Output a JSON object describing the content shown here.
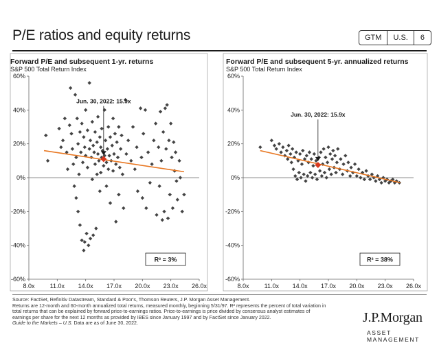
{
  "header": {
    "title": "P/E ratios and equity returns",
    "badges": [
      "GTM",
      "U.S.",
      "6"
    ]
  },
  "chart_data": [
    {
      "type": "scatter",
      "title": "Forward P/E and subsequent 1-yr. returns",
      "subtitle": "S&P 500 Total Return Index",
      "xlim": [
        8,
        26
      ],
      "ylim": [
        -60,
        60
      ],
      "x_ticks": [
        "8.0x",
        "11.0x",
        "14.0x",
        "17.0x",
        "20.0x",
        "23.0x",
        "26.0x"
      ],
      "y_ticks": [
        "-60%",
        "-40%",
        "-20%",
        "0%",
        "20%",
        "40%",
        "60%"
      ],
      "annotation": "Jun. 30, 2022: 15.9x",
      "r_squared": "R² = 3%",
      "trend_line": [
        [
          9.6,
          16.0
        ],
        [
          24.4,
          3.5
        ]
      ],
      "highlight_point": [
        15.9,
        11.0
      ],
      "marker_point": [
        15.9,
        14.5
      ],
      "colors": {
        "points": "#444444",
        "trend": "#e87722",
        "highlight": "#d9381e"
      },
      "points": [
        [
          9.8,
          25
        ],
        [
          10.0,
          10
        ],
        [
          11.2,
          29
        ],
        [
          11.4,
          18
        ],
        [
          11.6,
          22
        ],
        [
          11.8,
          35
        ],
        [
          12.0,
          15
        ],
        [
          12.1,
          5
        ],
        [
          12.3,
          31
        ],
        [
          12.4,
          53
        ],
        [
          12.5,
          26
        ],
        [
          12.6,
          17
        ],
        [
          12.7,
          8
        ],
        [
          12.8,
          -5
        ],
        [
          12.9,
          49
        ],
        [
          13.0,
          12
        ],
        [
          13.0,
          -12
        ],
        [
          13.1,
          35
        ],
        [
          13.2,
          20
        ],
        [
          13.2,
          -20
        ],
        [
          13.3,
          2
        ],
        [
          13.4,
          27
        ],
        [
          13.4,
          -28
        ],
        [
          13.5,
          15
        ],
        [
          13.6,
          -37
        ],
        [
          13.6,
          32
        ],
        [
          13.7,
          9
        ],
        [
          13.8,
          24
        ],
        [
          13.8,
          -43
        ],
        [
          13.9,
          18
        ],
        [
          13.9,
          -38
        ],
        [
          14.0,
          40
        ],
        [
          14.0,
          13
        ],
        [
          14.1,
          -33
        ],
        [
          14.2,
          28
        ],
        [
          14.2,
          6
        ],
        [
          14.3,
          -40
        ],
        [
          14.4,
          17
        ],
        [
          14.4,
          56
        ],
        [
          14.5,
          22
        ],
        [
          14.5,
          -36
        ],
        [
          14.6,
          12
        ],
        [
          14.7,
          33
        ],
        [
          14.7,
          -1
        ],
        [
          14.8,
          19
        ],
        [
          14.8,
          -34
        ],
        [
          14.9,
          15
        ],
        [
          15.0,
          27
        ],
        [
          15.0,
          8
        ],
        [
          15.1,
          -30
        ],
        [
          15.2,
          21
        ],
        [
          15.2,
          2
        ],
        [
          15.3,
          14
        ],
        [
          15.3,
          36
        ],
        [
          15.4,
          10
        ],
        [
          15.5,
          24
        ],
        [
          15.5,
          -8
        ],
        [
          15.6,
          18
        ],
        [
          15.6,
          3
        ],
        [
          15.7,
          12
        ],
        [
          15.7,
          29
        ],
        [
          15.8,
          16
        ],
        [
          15.9,
          7
        ],
        [
          16.0,
          13
        ],
        [
          16.0,
          40
        ],
        [
          16.1,
          22
        ],
        [
          16.2,
          9
        ],
        [
          16.2,
          -5
        ],
        [
          16.3,
          17
        ],
        [
          16.4,
          30
        ],
        [
          16.4,
          5
        ],
        [
          16.5,
          13
        ],
        [
          16.6,
          24
        ],
        [
          16.6,
          -15
        ],
        [
          16.7,
          10
        ],
        [
          16.8,
          19
        ],
        [
          16.9,
          35
        ],
        [
          16.9,
          4
        ],
        [
          17.0,
          14
        ],
        [
          17.1,
          26
        ],
        [
          17.2,
          8
        ],
        [
          17.2,
          -26
        ],
        [
          17.3,
          21
        ],
        [
          17.4,
          12
        ],
        [
          17.5,
          30
        ],
        [
          17.5,
          -10
        ],
        [
          17.6,
          6
        ],
        [
          17.7,
          17
        ],
        [
          17.8,
          25
        ],
        [
          17.9,
          2
        ],
        [
          18.0,
          -18
        ],
        [
          18.2,
          46
        ],
        [
          18.3,
          14
        ],
        [
          18.5,
          22
        ],
        [
          18.8,
          10
        ],
        [
          19.0,
          30
        ],
        [
          19.2,
          5
        ],
        [
          19.4,
          18
        ],
        [
          19.5,
          -8
        ],
        [
          19.8,
          41
        ],
        [
          19.9,
          12
        ],
        [
          20.0,
          -12
        ],
        [
          20.1,
          26
        ],
        [
          20.3,
          40
        ],
        [
          20.4,
          -18
        ],
        [
          20.6,
          15
        ],
        [
          20.8,
          -3
        ],
        [
          21.0,
          8
        ],
        [
          21.2,
          22
        ],
        [
          21.4,
          32
        ],
        [
          21.5,
          -22
        ],
        [
          21.7,
          18
        ],
        [
          21.8,
          -5
        ],
        [
          21.9,
          39
        ],
        [
          22.0,
          10
        ],
        [
          22.1,
          -25
        ],
        [
          22.2,
          27
        ],
        [
          22.3,
          -20
        ],
        [
          22.4,
          41
        ],
        [
          22.5,
          17
        ],
        [
          22.6,
          43
        ],
        [
          22.7,
          -24
        ],
        [
          22.8,
          22
        ],
        [
          22.9,
          -10
        ],
        [
          23.0,
          32
        ],
        [
          23.1,
          12
        ],
        [
          23.2,
          -18
        ],
        [
          23.3,
          21
        ],
        [
          23.4,
          4
        ],
        [
          23.5,
          15
        ],
        [
          23.6,
          -2
        ],
        [
          23.7,
          -13
        ],
        [
          23.9,
          10
        ],
        [
          24.0,
          0
        ],
        [
          24.2,
          -20
        ],
        [
          24.4,
          -10
        ]
      ]
    },
    {
      "type": "scatter",
      "title": "Forward P/E and subsequent 5-yr. annualized returns",
      "subtitle": "S&P 500 Total Return Index",
      "xlim": [
        8,
        26
      ],
      "ylim": [
        -60,
        60
      ],
      "x_ticks": [
        "8.0x",
        "11.0x",
        "14.0x",
        "17.0x",
        "20.0x",
        "23.0x",
        "26.0x"
      ],
      "y_ticks": [
        "-60%",
        "-40%",
        "-20%",
        "0%",
        "20%",
        "40%",
        "60%"
      ],
      "annotation": "Jun. 30, 2022: 15.9x",
      "r_squared": "R² = 38%",
      "trend_line": [
        [
          9.8,
          16.0
        ],
        [
          24.6,
          -3.0
        ]
      ],
      "highlight_point": [
        15.9,
        7.5
      ],
      "marker_point": [
        15.9,
        11.0
      ],
      "colors": {
        "points": "#444444",
        "trend": "#e87722",
        "highlight": "#d9381e"
      },
      "points": [
        [
          9.8,
          18
        ],
        [
          11.0,
          22
        ],
        [
          11.3,
          19
        ],
        [
          11.5,
          17
        ],
        [
          11.8,
          20
        ],
        [
          12.0,
          15
        ],
        [
          12.2,
          18
        ],
        [
          12.4,
          13
        ],
        [
          12.6,
          16
        ],
        [
          12.7,
          11
        ],
        [
          12.8,
          19
        ],
        [
          13.0,
          14
        ],
        [
          13.1,
          9
        ],
        [
          13.2,
          17
        ],
        [
          13.3,
          5
        ],
        [
          13.4,
          12
        ],
        [
          13.5,
          1
        ],
        [
          13.6,
          15
        ],
        [
          13.7,
          -1
        ],
        [
          13.8,
          10
        ],
        [
          13.9,
          3
        ],
        [
          14.0,
          14
        ],
        [
          14.1,
          0
        ],
        [
          14.2,
          8
        ],
        [
          14.3,
          16
        ],
        [
          14.4,
          2
        ],
        [
          14.5,
          11
        ],
        [
          14.6,
          -2
        ],
        [
          14.7,
          13
        ],
        [
          14.8,
          1
        ],
        [
          14.9,
          9
        ],
        [
          15.0,
          15
        ],
        [
          15.1,
          3
        ],
        [
          15.2,
          11
        ],
        [
          15.3,
          0
        ],
        [
          15.4,
          7
        ],
        [
          15.5,
          14
        ],
        [
          15.6,
          2
        ],
        [
          15.7,
          10
        ],
        [
          15.8,
          -1
        ],
        [
          16.0,
          12
        ],
        [
          16.1,
          4
        ],
        [
          16.2,
          15
        ],
        [
          16.3,
          1
        ],
        [
          16.4,
          8
        ],
        [
          16.5,
          17
        ],
        [
          16.6,
          3
        ],
        [
          16.7,
          12
        ],
        [
          16.8,
          0
        ],
        [
          16.9,
          9
        ],
        [
          17.0,
          18
        ],
        [
          17.1,
          5
        ],
        [
          17.2,
          14
        ],
        [
          17.3,
          2
        ],
        [
          17.4,
          11
        ],
        [
          17.5,
          16
        ],
        [
          17.6,
          6
        ],
        [
          17.7,
          13
        ],
        [
          17.8,
          3
        ],
        [
          17.9,
          9
        ],
        [
          18.0,
          17
        ],
        [
          18.2,
          5
        ],
        [
          18.3,
          11
        ],
        [
          18.5,
          2
        ],
        [
          18.6,
          8
        ],
        [
          18.8,
          13
        ],
        [
          19.0,
          4
        ],
        [
          19.1,
          9
        ],
        [
          19.3,
          1
        ],
        [
          19.4,
          6
        ],
        [
          19.6,
          3
        ],
        [
          19.8,
          8
        ],
        [
          20.0,
          1
        ],
        [
          20.2,
          5
        ],
        [
          20.4,
          0
        ],
        [
          20.6,
          3
        ],
        [
          20.8,
          -1
        ],
        [
          21.0,
          4
        ],
        [
          21.2,
          1
        ],
        [
          21.4,
          -1
        ],
        [
          21.6,
          2
        ],
        [
          21.8,
          0
        ],
        [
          22.0,
          -2
        ],
        [
          22.2,
          1
        ],
        [
          22.4,
          -1
        ],
        [
          22.6,
          -3
        ],
        [
          22.8,
          0
        ],
        [
          23.0,
          -2
        ],
        [
          23.2,
          -1
        ],
        [
          23.4,
          -3
        ],
        [
          23.6,
          -2
        ],
        [
          23.8,
          -1
        ],
        [
          24.0,
          -3
        ],
        [
          24.2,
          -2
        ],
        [
          24.5,
          -3
        ]
      ]
    }
  ],
  "footnote": {
    "line1": "Source: FactSet, Refinitiv Datastream, Standard & Poor's, Thomson Reuters, J.P. Morgan Asset Management.",
    "line2": "Returns are 12-month and 60-month annualized total returns, measured monthly, beginning 5/31/97. R² represents the percent of total variation in",
    "line3": "total returns that can be explained by forward price-to-earnings ratios. Price-to-earnings is price divided by consensus analyst estimates of",
    "line4": "earnings per share for the next 12 months as provided by IBES since January 1997 and by FactSet since January 2022.",
    "guide": "Guide to the Markets – U.S.",
    "as_of": " Data are as of June 30, 2022."
  },
  "logo": {
    "main": "J.P.Morgan",
    "sub": "ASSET MANAGEMENT"
  }
}
